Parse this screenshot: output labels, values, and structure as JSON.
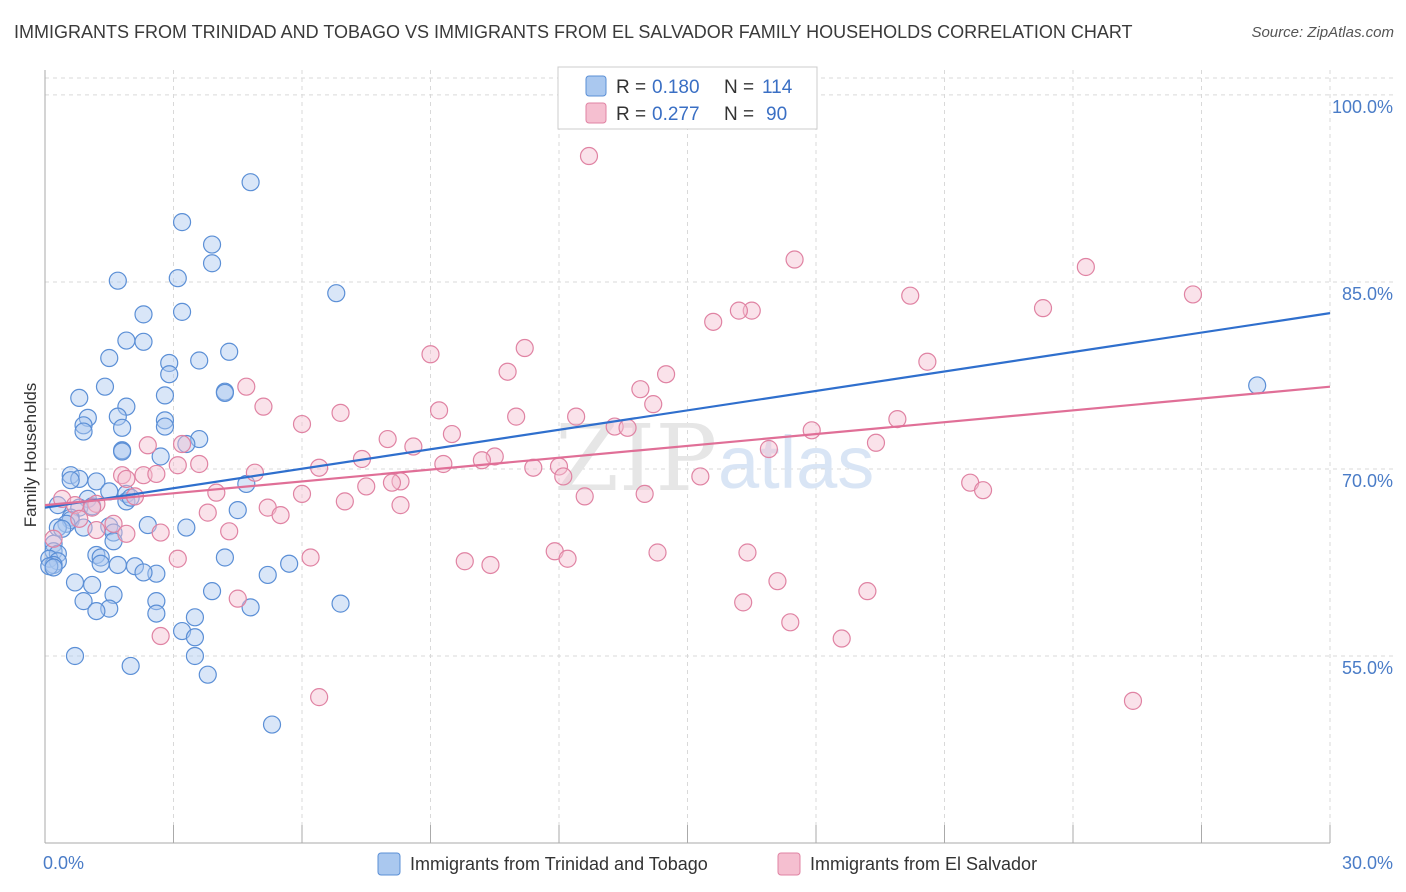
{
  "header": {
    "title": "IMMIGRANTS FROM TRINIDAD AND TOBAGO VS IMMIGRANTS FROM EL SALVADOR FAMILY HOUSEHOLDS CORRELATION CHART",
    "source": "Source: ZipAtlas.com"
  },
  "watermark": {
    "zip": "ZIP",
    "atlas": "atlas"
  },
  "legend_top": {
    "r_label": "R =",
    "n_label": "N =",
    "rows": [
      {
        "r": "0.180",
        "n": "114"
      },
      {
        "r": "0.277",
        "n": "90"
      }
    ]
  },
  "colors": {
    "blue_fill": "#aac8ef",
    "blue_stroke": "#5b8fd6",
    "blue_line": "#2f6fcd",
    "pink_fill": "#f5bfd0",
    "pink_stroke": "#e083a3",
    "pink_line": "#e06f97",
    "grid": "#d9d9d9",
    "tick_text": "#4a7cc7"
  },
  "chart_data": {
    "type": "scatter",
    "title": "IMMIGRANTS FROM TRINIDAD AND TOBAGO VS IMMIGRANTS FROM EL SALVADOR FAMILY HOUSEHOLDS CORRELATION CHART",
    "xlabel": "",
    "ylabel": "Family Households",
    "xlim": [
      0,
      30
    ],
    "ylim": [
      40,
      102
    ],
    "x_tick_labels": [
      "0.0%",
      "30.0%"
    ],
    "y_ticks": [
      55,
      70,
      85,
      100
    ],
    "y_tick_labels": [
      "55.0%",
      "70.0%",
      "85.0%",
      "100.0%"
    ],
    "grid": true,
    "legend_position": "top-center",
    "series": [
      {
        "name": "Immigrants from Trinidad and Tobago",
        "r": 0.18,
        "n": 114,
        "trend": {
          "x": [
            0,
            30
          ],
          "y": [
            66.9,
            82.5
          ]
        },
        "points": [
          [
            4.8,
            93.0
          ],
          [
            3.2,
            89.8
          ],
          [
            3.9,
            88.0
          ],
          [
            3.9,
            86.5
          ],
          [
            1.7,
            85.1
          ],
          [
            3.1,
            85.3
          ],
          [
            6.8,
            84.1
          ],
          [
            2.3,
            82.4
          ],
          [
            3.2,
            82.6
          ],
          [
            1.9,
            80.3
          ],
          [
            2.3,
            80.2
          ],
          [
            4.3,
            79.4
          ],
          [
            1.5,
            78.9
          ],
          [
            2.9,
            78.5
          ],
          [
            3.6,
            78.7
          ],
          [
            2.9,
            77.6
          ],
          [
            1.4,
            76.6
          ],
          [
            0.8,
            75.7
          ],
          [
            1.9,
            75.0
          ],
          [
            2.8,
            75.9
          ],
          [
            4.2,
            76.2
          ],
          [
            4.2,
            76.1
          ],
          [
            1.7,
            74.2
          ],
          [
            2.8,
            73.9
          ],
          [
            1.0,
            74.1
          ],
          [
            0.9,
            73.5
          ],
          [
            2.8,
            73.4
          ],
          [
            0.9,
            73.0
          ],
          [
            1.8,
            73.3
          ],
          [
            3.6,
            72.4
          ],
          [
            3.3,
            72.0
          ],
          [
            1.8,
            71.5
          ],
          [
            1.8,
            71.4
          ],
          [
            2.7,
            71.0
          ],
          [
            0.6,
            69.5
          ],
          [
            0.8,
            69.2
          ],
          [
            1.2,
            69.0
          ],
          [
            0.6,
            69.1
          ],
          [
            4.7,
            68.8
          ],
          [
            1.5,
            68.2
          ],
          [
            1.9,
            68.0
          ],
          [
            1.9,
            67.4
          ],
          [
            2.0,
            67.7
          ],
          [
            1.0,
            67.6
          ],
          [
            0.3,
            67.1
          ],
          [
            0.8,
            66.9
          ],
          [
            1.1,
            67.0
          ],
          [
            4.5,
            66.7
          ],
          [
            0.6,
            66.1
          ],
          [
            0.6,
            65.9
          ],
          [
            0.5,
            65.6
          ],
          [
            0.3,
            65.3
          ],
          [
            0.9,
            65.3
          ],
          [
            0.4,
            65.2
          ],
          [
            2.4,
            65.5
          ],
          [
            3.3,
            65.3
          ],
          [
            1.5,
            65.4
          ],
          [
            1.6,
            64.9
          ],
          [
            1.6,
            64.2
          ],
          [
            0.2,
            64.0
          ],
          [
            0.2,
            63.4
          ],
          [
            0.3,
            63.2
          ],
          [
            1.2,
            63.1
          ],
          [
            1.3,
            62.9
          ],
          [
            0.1,
            62.8
          ],
          [
            0.3,
            62.6
          ],
          [
            4.2,
            62.9
          ],
          [
            1.3,
            62.4
          ],
          [
            1.7,
            62.3
          ],
          [
            0.2,
            62.3
          ],
          [
            0.1,
            62.2
          ],
          [
            0.2,
            62.1
          ],
          [
            2.1,
            62.2
          ],
          [
            5.7,
            62.4
          ],
          [
            2.6,
            61.6
          ],
          [
            5.2,
            61.5
          ],
          [
            2.3,
            61.7
          ],
          [
            0.7,
            60.9
          ],
          [
            1.1,
            60.7
          ],
          [
            3.9,
            60.2
          ],
          [
            1.6,
            59.9
          ],
          [
            0.9,
            59.4
          ],
          [
            2.6,
            59.4
          ],
          [
            6.9,
            59.2
          ],
          [
            4.8,
            58.9
          ],
          [
            1.5,
            58.8
          ],
          [
            1.2,
            58.6
          ],
          [
            2.6,
            58.4
          ],
          [
            3.5,
            58.1
          ],
          [
            3.2,
            57.0
          ],
          [
            3.5,
            56.5
          ],
          [
            0.7,
            55.0
          ],
          [
            3.5,
            55.0
          ],
          [
            2.0,
            54.2
          ],
          [
            3.8,
            53.5
          ],
          [
            5.3,
            49.5
          ],
          [
            28.3,
            76.7
          ]
        ]
      },
      {
        "name": "Immigrants from El Salvador",
        "r": 0.277,
        "n": 90,
        "trend": {
          "x": [
            0,
            30
          ],
          "y": [
            67.1,
            76.6
          ]
        },
        "points": [
          [
            12.7,
            95.1
          ],
          [
            17.5,
            86.8
          ],
          [
            24.3,
            86.2
          ],
          [
            26.8,
            84.0
          ],
          [
            20.2,
            83.9
          ],
          [
            16.5,
            82.7
          ],
          [
            23.3,
            82.9
          ],
          [
            16.2,
            82.7
          ],
          [
            15.6,
            81.8
          ],
          [
            11.2,
            79.7
          ],
          [
            9.0,
            79.2
          ],
          [
            20.6,
            78.6
          ],
          [
            10.8,
            77.8
          ],
          [
            14.5,
            77.6
          ],
          [
            4.7,
            76.6
          ],
          [
            13.9,
            76.4
          ],
          [
            5.1,
            75.0
          ],
          [
            9.2,
            74.7
          ],
          [
            14.2,
            75.2
          ],
          [
            6.9,
            74.5
          ],
          [
            11.0,
            74.2
          ],
          [
            12.4,
            74.2
          ],
          [
            13.3,
            73.4
          ],
          [
            6.0,
            73.6
          ],
          [
            19.9,
            74.0
          ],
          [
            13.6,
            73.3
          ],
          [
            17.9,
            73.1
          ],
          [
            9.5,
            72.8
          ],
          [
            8.0,
            72.4
          ],
          [
            19.4,
            72.1
          ],
          [
            3.2,
            72.0
          ],
          [
            2.4,
            71.9
          ],
          [
            8.6,
            71.8
          ],
          [
            16.9,
            71.6
          ],
          [
            10.5,
            71.0
          ],
          [
            10.2,
            70.7
          ],
          [
            7.4,
            70.8
          ],
          [
            3.6,
            70.4
          ],
          [
            3.1,
            70.3
          ],
          [
            9.3,
            70.4
          ],
          [
            12.0,
            70.2
          ],
          [
            11.4,
            70.1
          ],
          [
            6.4,
            70.1
          ],
          [
            2.3,
            69.5
          ],
          [
            4.9,
            69.7
          ],
          [
            2.6,
            69.6
          ],
          [
            1.8,
            69.5
          ],
          [
            12.1,
            69.4
          ],
          [
            15.3,
            69.4
          ],
          [
            1.9,
            69.2
          ],
          [
            8.3,
            69.0
          ],
          [
            7.5,
            68.6
          ],
          [
            8.1,
            68.9
          ],
          [
            21.6,
            68.9
          ],
          [
            4.0,
            68.1
          ],
          [
            6.0,
            68.0
          ],
          [
            14.0,
            68.0
          ],
          [
            21.9,
            68.3
          ],
          [
            2.1,
            67.8
          ],
          [
            12.6,
            67.8
          ],
          [
            0.4,
            67.6
          ],
          [
            1.2,
            67.2
          ],
          [
            7.0,
            67.4
          ],
          [
            8.3,
            67.1
          ],
          [
            5.2,
            66.9
          ],
          [
            0.7,
            67.1
          ],
          [
            1.1,
            66.9
          ],
          [
            3.8,
            66.5
          ],
          [
            5.5,
            66.3
          ],
          [
            0.8,
            66.0
          ],
          [
            1.6,
            65.6
          ],
          [
            1.2,
            65.1
          ],
          [
            4.3,
            65.0
          ],
          [
            2.7,
            64.9
          ],
          [
            1.9,
            64.8
          ],
          [
            0.2,
            64.4
          ],
          [
            11.9,
            63.4
          ],
          [
            14.3,
            63.3
          ],
          [
            3.1,
            62.8
          ],
          [
            6.2,
            62.9
          ],
          [
            9.8,
            62.6
          ],
          [
            10.4,
            62.3
          ],
          [
            12.2,
            62.8
          ],
          [
            16.4,
            63.3
          ],
          [
            16.3,
            59.3
          ],
          [
            17.1,
            61.0
          ],
          [
            19.2,
            60.2
          ],
          [
            4.5,
            59.6
          ],
          [
            17.4,
            57.7
          ],
          [
            18.6,
            56.4
          ],
          [
            2.7,
            56.6
          ],
          [
            6.4,
            51.7
          ],
          [
            25.4,
            51.4
          ]
        ]
      }
    ]
  }
}
